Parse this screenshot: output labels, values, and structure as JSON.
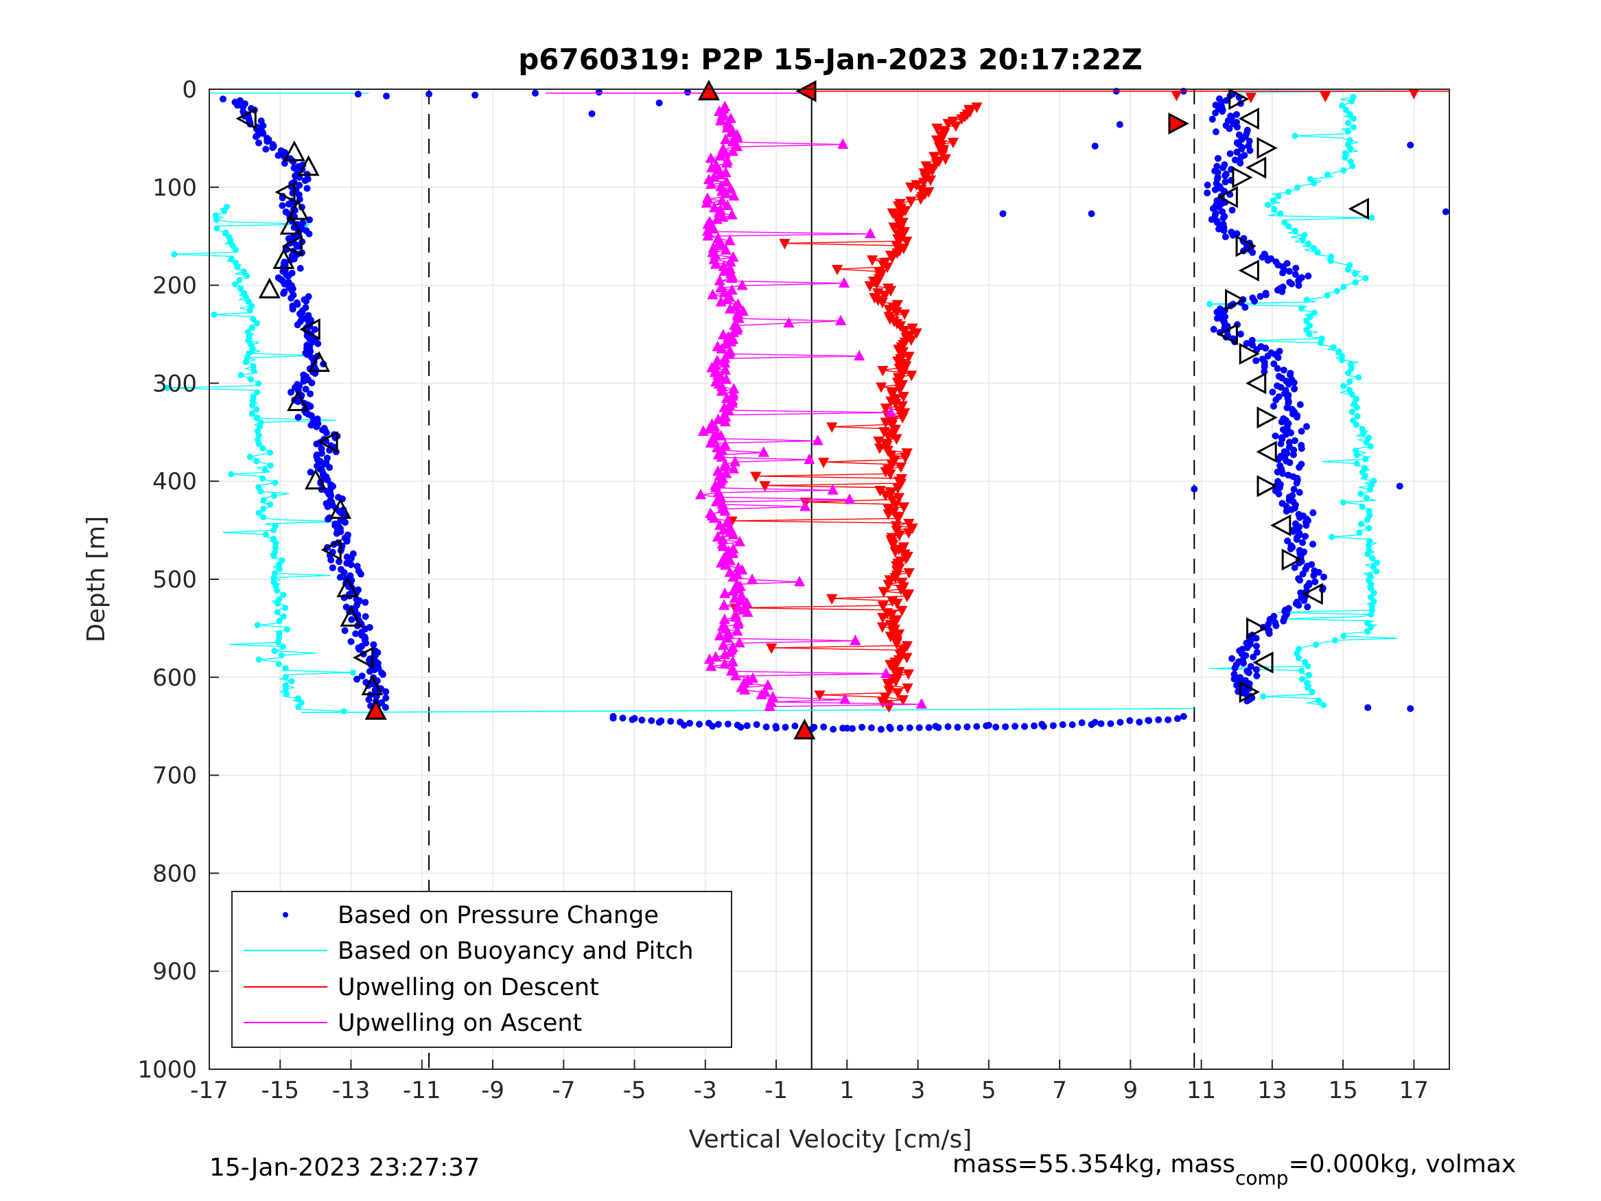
{
  "chart_data": {
    "type": "scatter",
    "title": "p6760319: P2P 15-Jan-2023 20:17:22Z",
    "xlabel": "Vertical Velocity [cm/s]",
    "ylabel": "Depth [m]",
    "xlim": [
      -17,
      18
    ],
    "ylim": [
      0,
      1000
    ],
    "y_reversed": true,
    "grid": true,
    "x_ticks": [
      -17,
      -15,
      -13,
      -11,
      -9,
      -7,
      -5,
      -3,
      -1,
      1,
      3,
      5,
      7,
      9,
      11,
      13,
      15,
      17
    ],
    "x_tick_labels": [
      "-17",
      "-15",
      "-13",
      "-11",
      "-9",
      "-7",
      "-5",
      "-3",
      "-1",
      "1",
      "3",
      "5",
      "7",
      "9",
      "11",
      "13",
      "15",
      "17"
    ],
    "y_ticks": [
      0,
      100,
      200,
      300,
      400,
      500,
      600,
      700,
      800,
      900,
      1000
    ],
    "y_tick_labels": [
      "0",
      "100",
      "200",
      "300",
      "400",
      "500",
      "600",
      "700",
      "800",
      "900",
      "1000"
    ],
    "reference_lines": {
      "dashed_x": [
        -10.8,
        10.8
      ],
      "solid_x": [
        0
      ]
    },
    "legend": {
      "position": "bottom-left",
      "entries": [
        {
          "label": "Based on Pressure Change",
          "color": "#0000ff",
          "style": "dot"
        },
        {
          "label": "Based on Buoyancy and Pitch",
          "color": "#00ffff",
          "style": "line"
        },
        {
          "label": "Upwelling on Descent",
          "color": "#ff0000",
          "style": "line"
        },
        {
          "label": "Upwelling on Ascent",
          "color": "#ff00ff",
          "style": "line"
        }
      ]
    },
    "series": [
      {
        "color": "#0000ff",
        "marker": "dot",
        "desc_points": [
          [
            -16.5,
            10
          ],
          [
            -16.0,
            20
          ],
          [
            -15.9,
            30
          ],
          [
            -15.6,
            40
          ],
          [
            -15.2,
            60
          ],
          [
            -14.7,
            75
          ],
          [
            -14.2,
            90
          ],
          [
            -14.8,
            110
          ],
          [
            -14.4,
            140
          ],
          [
            -14.6,
            165
          ],
          [
            -14.9,
            190
          ],
          [
            -14.4,
            220
          ],
          [
            -14.1,
            250
          ],
          [
            -14.1,
            280
          ],
          [
            -14.5,
            320
          ],
          [
            -13.6,
            355
          ],
          [
            -13.9,
            390
          ],
          [
            -13.4,
            430
          ],
          [
            -13.3,
            470
          ],
          [
            -13.0,
            510
          ],
          [
            -12.8,
            545
          ],
          [
            -12.5,
            580
          ],
          [
            -12.4,
            610
          ],
          [
            -12.3,
            630
          ]
        ],
        "bottom_points": [
          [
            -5.6,
            640
          ],
          [
            -5.0,
            642
          ],
          [
            -4.3,
            646
          ],
          [
            -3.6,
            649
          ],
          [
            -2.8,
            650
          ],
          [
            -2.0,
            651
          ],
          [
            -1.0,
            652
          ],
          [
            0.0,
            653
          ],
          [
            1.0,
            652
          ],
          [
            2.2,
            651
          ],
          [
            3.5,
            650
          ],
          [
            5.0,
            649
          ],
          [
            6.5,
            648
          ],
          [
            8.0,
            646
          ],
          [
            9.5,
            644
          ],
          [
            10.5,
            640
          ]
        ],
        "asc_points": [
          [
            12.3,
            625
          ],
          [
            12.2,
            600
          ],
          [
            12.3,
            570
          ],
          [
            13.8,
            520
          ],
          [
            14.2,
            500
          ],
          [
            13.7,
            470
          ],
          [
            13.9,
            440
          ],
          [
            13.4,
            410
          ],
          [
            13.4,
            380
          ],
          [
            13.6,
            350
          ],
          [
            13.5,
            320
          ],
          [
            13.3,
            295
          ],
          [
            13.0,
            270
          ],
          [
            11.5,
            245
          ],
          [
            11.9,
            220
          ],
          [
            13.9,
            195
          ],
          [
            12.8,
            170
          ],
          [
            11.7,
            145
          ],
          [
            11.4,
            120
          ],
          [
            11.6,
            100
          ],
          [
            11.5,
            80
          ],
          [
            12.3,
            60
          ],
          [
            11.8,
            40
          ],
          [
            11.6,
            20
          ],
          [
            11.8,
            5
          ]
        ],
        "surface_points": [
          [
            -12.8,
            5
          ],
          [
            -12.0,
            7
          ],
          [
            -10.8,
            5
          ],
          [
            -9.5,
            6
          ],
          [
            -7.8,
            4
          ],
          [
            -6.0,
            3
          ],
          [
            -3.5,
            3
          ],
          [
            8.6,
            2
          ],
          [
            10.5,
            2
          ],
          [
            -4.3,
            14
          ],
          [
            -6.2,
            25
          ]
        ],
        "stray_points": [
          [
            5.4,
            127
          ],
          [
            7.9,
            127
          ],
          [
            8.7,
            36
          ],
          [
            8.0,
            58
          ],
          [
            16.9,
            57
          ],
          [
            17.9,
            125
          ],
          [
            16.9,
            632
          ],
          [
            15.7,
            631
          ],
          [
            16.6,
            405
          ],
          [
            10.8,
            408
          ]
        ]
      },
      {
        "color": "#00ffff",
        "marker": "line",
        "desc_points": [
          [
            -16.5,
            120
          ],
          [
            -16.7,
            140
          ],
          [
            -16.3,
            160
          ],
          [
            -16.1,
            190
          ],
          [
            -15.9,
            220
          ],
          [
            -15.8,
            260
          ],
          [
            -15.8,
            300
          ],
          [
            -15.6,
            350
          ],
          [
            -15.5,
            390
          ],
          [
            -15.4,
            430
          ],
          [
            -15.2,
            470
          ],
          [
            -15.0,
            510
          ],
          [
            -15.0,
            550
          ],
          [
            -14.9,
            590
          ],
          [
            -14.7,
            620
          ],
          [
            -14.4,
            635
          ]
        ],
        "asc_points": [
          [
            14.2,
            630
          ],
          [
            14.0,
            600
          ],
          [
            13.8,
            570
          ],
          [
            15.7,
            550
          ],
          [
            15.8,
            520
          ],
          [
            15.8,
            480
          ],
          [
            15.6,
            440
          ],
          [
            15.7,
            400
          ],
          [
            15.5,
            360
          ],
          [
            15.2,
            320
          ],
          [
            15.2,
            280
          ],
          [
            14.1,
            250
          ],
          [
            14.0,
            220
          ],
          [
            15.7,
            190
          ],
          [
            13.9,
            160
          ],
          [
            13.2,
            130
          ],
          [
            13.0,
            110
          ],
          [
            15.2,
            80
          ],
          [
            15.3,
            60
          ],
          [
            15.1,
            30
          ],
          [
            15.2,
            10
          ]
        ]
      },
      {
        "color": "#ff0000",
        "marker": "triangle-down",
        "points": [
          [
            4.5,
            20
          ],
          [
            3.8,
            40
          ],
          [
            3.6,
            60
          ],
          [
            3.4,
            80
          ],
          [
            3.0,
            110
          ],
          [
            2.2,
            130
          ],
          [
            2.5,
            160
          ],
          [
            1.8,
            190
          ],
          [
            2.0,
            210
          ],
          [
            2.6,
            240
          ],
          [
            2.6,
            270
          ],
          [
            2.4,
            300
          ],
          [
            2.3,
            340
          ],
          [
            2.2,
            370
          ],
          [
            2.2,
            400
          ],
          [
            2.4,
            440
          ],
          [
            2.5,
            470
          ],
          [
            2.4,
            510
          ],
          [
            2.3,
            550
          ],
          [
            2.4,
            590
          ],
          [
            2.3,
            630
          ],
          [
            10.3,
            6
          ],
          [
            12.4,
            8
          ],
          [
            14.5,
            7
          ],
          [
            17.0,
            4
          ]
        ]
      },
      {
        "color": "#ff00ff",
        "marker": "triangle-up",
        "points": [
          [
            -0.9,
            630
          ],
          [
            -1.6,
            610
          ],
          [
            -2.5,
            590
          ],
          [
            -2.3,
            560
          ],
          [
            -2.2,
            530
          ],
          [
            -2.1,
            500
          ],
          [
            -2.5,
            470
          ],
          [
            -2.4,
            440
          ],
          [
            -2.8,
            410
          ],
          [
            -2.4,
            380
          ],
          [
            -2.7,
            350
          ],
          [
            -2.2,
            320
          ],
          [
            -2.6,
            290
          ],
          [
            -2.5,
            260
          ],
          [
            -2.1,
            230
          ],
          [
            -2.4,
            200
          ],
          [
            -2.5,
            170
          ],
          [
            -2.8,
            140
          ],
          [
            -2.5,
            110
          ],
          [
            -2.6,
            80
          ],
          [
            -2.2,
            50
          ],
          [
            -2.5,
            20
          ],
          [
            -2.7,
            5
          ]
        ]
      }
    ],
    "black_markers": [
      [
        -15.9,
        30
      ],
      [
        -14.6,
        65
      ],
      [
        -14.2,
        80
      ],
      [
        -14.8,
        105
      ],
      [
        -14.5,
        125
      ],
      [
        -14.7,
        140
      ],
      [
        -14.6,
        160
      ],
      [
        -14.9,
        175
      ],
      [
        -15.3,
        205
      ],
      [
        -14.1,
        245
      ],
      [
        -13.9,
        280
      ],
      [
        -14.5,
        320
      ],
      [
        -13.6,
        360
      ],
      [
        -14.0,
        400
      ],
      [
        -13.3,
        430
      ],
      [
        -13.5,
        470
      ],
      [
        -13.1,
        510
      ],
      [
        -13.0,
        540
      ],
      [
        -12.6,
        580
      ],
      [
        -12.4,
        610
      ],
      [
        -12.3,
        635
      ],
      [
        12.0,
        10
      ],
      [
        12.4,
        30
      ],
      [
        12.8,
        60
      ],
      [
        12.6,
        80
      ],
      [
        12.1,
        90
      ],
      [
        11.8,
        110
      ],
      [
        12.2,
        160
      ],
      [
        12.4,
        185
      ],
      [
        11.9,
        215
      ],
      [
        11.8,
        250
      ],
      [
        12.3,
        270
      ],
      [
        12.6,
        300
      ],
      [
        12.8,
        335
      ],
      [
        12.9,
        370
      ],
      [
        12.8,
        405
      ],
      [
        13.3,
        445
      ],
      [
        13.5,
        480
      ],
      [
        14.2,
        515
      ],
      [
        12.5,
        550
      ],
      [
        12.8,
        585
      ],
      [
        12.3,
        615
      ],
      [
        15.5,
        122
      ],
      [
        10.3,
        35
      ],
      [
        -0.2,
        655
      ],
      [
        -0.1,
        2
      ],
      [
        -2.9,
        3
      ]
    ]
  },
  "footer": {
    "timestamp": "15-Jan-2023 23:27:37",
    "mass_text_a": "mass=55.354kg, mass",
    "mass_subscript": "comp",
    "mass_text_b": "=0.000kg, volmax"
  }
}
